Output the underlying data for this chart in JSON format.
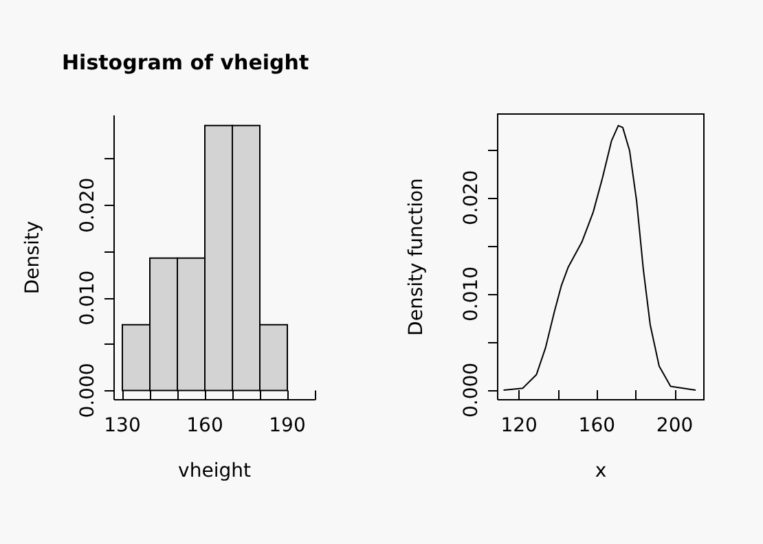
{
  "chart_data": [
    {
      "type": "histogram",
      "title": "Histogram of vheight",
      "xlabel": "vheight",
      "ylabel": "Density",
      "color": "#d3d3d3",
      "bins": [
        130,
        140,
        150,
        160,
        170,
        180,
        190
      ],
      "values": [
        0.0071,
        0.0143,
        0.0143,
        0.0286,
        0.0286,
        0.0071
      ],
      "xlim": [
        127,
        200
      ],
      "xticks": [
        130,
        {
          "value": 140,
          "label": null
        },
        {
          "value": 150,
          "label": null
        },
        160,
        {
          "value": 170,
          "label": null
        },
        {
          "value": 180,
          "label": null
        },
        190,
        {
          "value": 200,
          "label": null
        }
      ],
      "ylim": [
        -0.001,
        0.0297
      ],
      "yticks": [
        {
          "value": 0,
          "label": "0.000"
        },
        {
          "value": 0.005,
          "label": null
        },
        {
          "value": 0.01,
          "label": "0.010"
        },
        {
          "value": 0.015,
          "label": null
        },
        {
          "value": 0.02,
          "label": "0.020"
        },
        {
          "value": 0.025,
          "label": null
        }
      ],
      "grid": false
    },
    {
      "type": "line",
      "xlabel": "x",
      "ylabel": "Density function",
      "marker": "none",
      "line_style": "solid",
      "series": [
        {
          "color": "#000000",
          "x": [
            112,
            121.9,
            128.9,
            133.6,
            138.2,
            141.8,
            145.3,
            152.3,
            158.1,
            162.8,
            167.5,
            171.0,
            173.3,
            176.8,
            180.4,
            183.9,
            187.4,
            192.0,
            197.9,
            210.8
          ],
          "values": [
            0,
            0.0002,
            0.0016,
            0.0044,
            0.0082,
            0.0109,
            0.0128,
            0.0154,
            0.0185,
            0.022,
            0.0259,
            0.0275,
            0.0273,
            0.0249,
            0.0197,
            0.0125,
            0.0068,
            0.0025,
            0.0004,
            0
          ]
        }
      ],
      "xlim": [
        109,
        215
      ],
      "xticks": [
        120,
        {
          "value": 140,
          "label": null
        },
        160,
        {
          "value": 180,
          "label": null
        },
        200
      ],
      "ylim": [
        -0.001,
        0.0287
      ],
      "yticks": [
        {
          "value": 0,
          "label": "0.000"
        },
        {
          "value": 0.005,
          "label": null
        },
        {
          "value": 0.01,
          "label": "0.010"
        },
        {
          "value": 0.015,
          "label": null
        },
        {
          "value": 0.02,
          "label": "0.020"
        },
        {
          "value": 0.025,
          "label": null
        }
      ],
      "grid": false
    }
  ]
}
